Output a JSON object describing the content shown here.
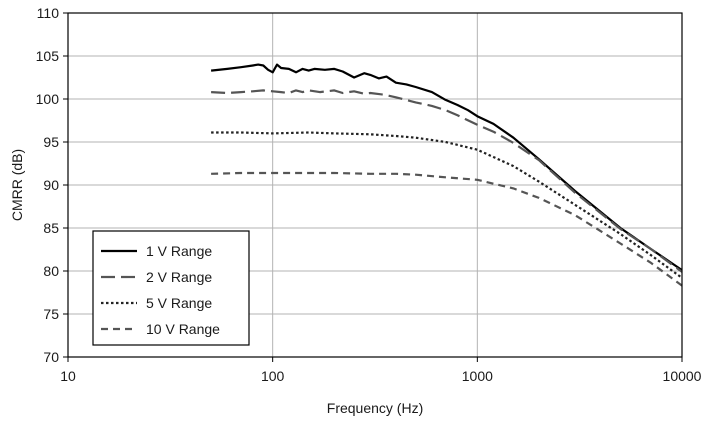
{
  "chart_data": {
    "type": "line",
    "title": "",
    "xlabel": "Frequency (Hz)",
    "ylabel": "CMRR (dB)",
    "xscale": "log",
    "xlim": [
      10,
      10000
    ],
    "ylim": [
      70,
      110
    ],
    "x_ticks": [
      "10",
      "100",
      "1000",
      "10000"
    ],
    "y_ticks": [
      "70",
      "75",
      "80",
      "85",
      "90",
      "95",
      "100",
      "105",
      "110"
    ],
    "grid": {
      "x": true,
      "y": true
    },
    "legend": {
      "placement": "bottom-left"
    },
    "series": [
      {
        "name": "1 V Range",
        "style": "solid",
        "color": "#000000",
        "x": [
          50,
          60,
          70,
          80,
          85,
          90,
          95,
          100,
          105,
          110,
          120,
          130,
          140,
          150,
          160,
          180,
          200,
          220,
          250,
          280,
          300,
          330,
          360,
          400,
          450,
          500,
          600,
          700,
          800,
          900,
          1000,
          1200,
          1500,
          2000,
          3000,
          5000,
          7000,
          10000
        ],
        "y": [
          103.3,
          103.5,
          103.7,
          103.9,
          104.0,
          103.9,
          103.4,
          103.1,
          104.0,
          103.6,
          103.5,
          103.1,
          103.5,
          103.3,
          103.5,
          103.4,
          103.5,
          103.2,
          102.5,
          103.0,
          102.8,
          102.4,
          102.6,
          101.9,
          101.7,
          101.4,
          100.8,
          99.9,
          99.3,
          98.7,
          98.0,
          97.1,
          95.5,
          93.0,
          89.3,
          85.0,
          82.6,
          80.1
        ]
      },
      {
        "name": "2 V Range",
        "style": "long-dash",
        "color": "#555555",
        "x": [
          50,
          60,
          70,
          80,
          90,
          100,
          110,
          120,
          130,
          140,
          150,
          170,
          200,
          220,
          250,
          280,
          300,
          350,
          400,
          500,
          600,
          700,
          800,
          1000,
          1200,
          1500,
          2000,
          3000,
          5000,
          7000,
          10000
        ],
        "y": [
          100.8,
          100.7,
          100.8,
          100.9,
          101.0,
          100.9,
          100.8,
          100.7,
          101.0,
          100.8,
          101.0,
          100.8,
          101.0,
          100.7,
          100.9,
          100.6,
          100.7,
          100.5,
          100.2,
          99.6,
          99.2,
          98.7,
          98.1,
          97.0,
          96.2,
          94.9,
          92.9,
          89.1,
          84.9,
          82.6,
          79.9
        ]
      },
      {
        "name": "5 V Range",
        "style": "dotted",
        "color": "#222222",
        "x": [
          50,
          70,
          100,
          150,
          200,
          300,
          400,
          500,
          700,
          1000,
          1500,
          2000,
          3000,
          5000,
          7000,
          10000
        ],
        "y": [
          96.1,
          96.1,
          96.0,
          96.1,
          96.0,
          95.9,
          95.7,
          95.5,
          95.0,
          94.1,
          92.2,
          90.4,
          87.7,
          84.3,
          81.9,
          79.2
        ]
      },
      {
        "name": "10 V Range",
        "style": "short-dash",
        "color": "#555555",
        "x": [
          50,
          70,
          100,
          150,
          200,
          300,
          400,
          500,
          700,
          1000,
          1500,
          2000,
          3000,
          5000,
          7000,
          10000
        ],
        "y": [
          91.3,
          91.4,
          91.4,
          91.4,
          91.4,
          91.3,
          91.3,
          91.2,
          90.9,
          90.6,
          89.6,
          88.5,
          86.5,
          83.2,
          81.0,
          78.3
        ]
      }
    ]
  }
}
